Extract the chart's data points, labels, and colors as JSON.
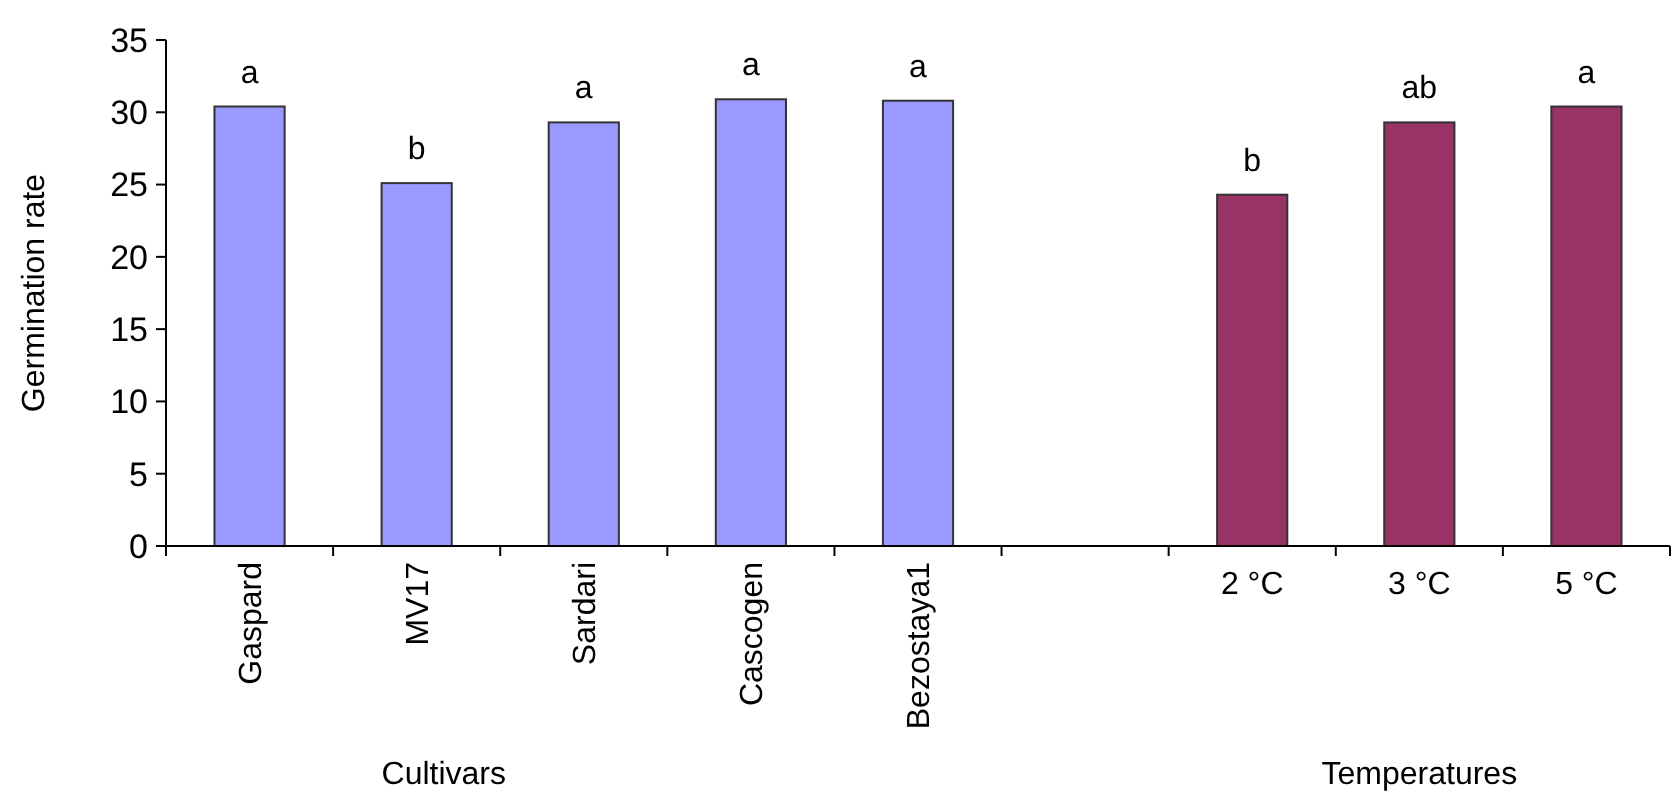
{
  "chart_data": {
    "type": "bar",
    "ylabel": "Germination rate",
    "categories": [
      "Gaspard",
      "MV17",
      "Sardari",
      "Cascogen",
      "Bezostaya1",
      null,
      "2 °C",
      "3 °C",
      "5 °C"
    ],
    "series": [
      {
        "color": "#9999ff",
        "values": [
          30.4,
          25.1,
          29.3,
          30.9,
          30.8,
          null,
          null,
          null,
          null
        ]
      },
      {
        "color": "#993366",
        "values": [
          null,
          null,
          null,
          null,
          null,
          null,
          24.3,
          29.3,
          30.4
        ]
      }
    ],
    "ylim": [
      0,
      35
    ],
    "yticks": [
      0,
      5,
      10,
      15,
      20,
      25,
      30,
      35
    ],
    "grid": false,
    "legend": false,
    "annotations": [
      {
        "text": "a",
        "x": "Gaspard",
        "y": 30.4
      },
      {
        "text": "b",
        "x": "MV17",
        "y": 25.1
      },
      {
        "text": "a",
        "x": "Sardari",
        "y": 29.3
      },
      {
        "text": "a",
        "x": "Cascogen",
        "y": 30.9
      },
      {
        "text": "a",
        "x": "Bezostaya1",
        "y": 30.8
      },
      {
        "text": "b",
        "x": "2 °C",
        "y": 24.3
      },
      {
        "text": "ab",
        "x": "3 °C",
        "y": 29.3
      },
      {
        "text": "a",
        "x": "5 °C",
        "y": 30.4
      },
      "Cultivars",
      "Temperatures"
    ]
  }
}
